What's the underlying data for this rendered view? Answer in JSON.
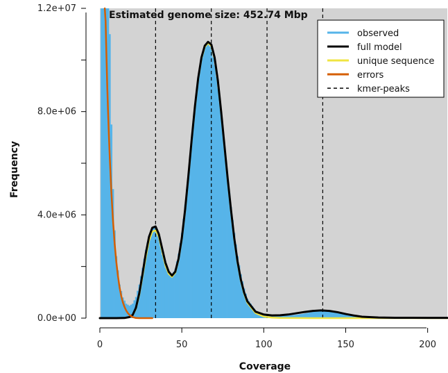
{
  "chart_data": {
    "type": "area",
    "title": "Estimated genome size: 452.74 Mbp",
    "xlabel": "Coverage",
    "ylabel": "Frequency",
    "xlim": [
      0,
      212
    ],
    "ylim": [
      0,
      12000000
    ],
    "xticks": [
      0,
      50,
      100,
      150,
      200
    ],
    "xtick_labels": [
      "0",
      "50",
      "100",
      "150",
      "200"
    ],
    "yticks": [
      0,
      2000000,
      4000000,
      6000000,
      8000000,
      10000000,
      12000000
    ],
    "ytick_labels": [
      "0.0e+00",
      "",
      "4.0e+06",
      "",
      "8.0e+06",
      "",
      "1.2e+07"
    ],
    "kmer_peaks": [
      34,
      68,
      102,
      136
    ],
    "legend_position": "top-right",
    "background": "#d3d3d3",
    "colors": {
      "observed": "#56b4e9",
      "full_model": "#000000",
      "unique_sequence": "#f0e442",
      "errors": "#d55e00",
      "kmer_peaks": "#000000"
    },
    "series": [
      {
        "name": "observed",
        "x": [
          1,
          2,
          3,
          4,
          5,
          6,
          7,
          8,
          9,
          10,
          12,
          14,
          16,
          18,
          20,
          22,
          24,
          26,
          28,
          30,
          32,
          34,
          36,
          38,
          40,
          42,
          44,
          46,
          48,
          50,
          52,
          54,
          56,
          58,
          60,
          62,
          64,
          66,
          68,
          70,
          72,
          74,
          76,
          78,
          80,
          82,
          84,
          86,
          88,
          90,
          95,
          100,
          105,
          110,
          115,
          120,
          125,
          130,
          135,
          140,
          145,
          150,
          155,
          160,
          170,
          180,
          190,
          200,
          212
        ],
        "y": [
          12000000,
          12000000,
          12000000,
          12000000,
          12000000,
          11000000,
          7500000,
          5000000,
          3400000,
          2400000,
          1300000,
          800000,
          560000,
          480000,
          560000,
          820000,
          1300000,
          1950000,
          2650000,
          3200000,
          3520000,
          3500000,
          3100000,
          2450000,
          1950000,
          1720000,
          1680000,
          1900000,
          2500000,
          3300000,
          4400000,
          5600000,
          6900000,
          8200000,
          9300000,
          10100000,
          10550000,
          10650000,
          10400000,
          9800000,
          8900000,
          7800000,
          6600000,
          5400000,
          4300000,
          3300000,
          2400000,
          1700000,
          1150000,
          750000,
          280000,
          140000,
          100000,
          95000,
          100000,
          130000,
          180000,
          240000,
          275000,
          260000,
          210000,
          140000,
          85000,
          45000,
          25000,
          18000,
          14000,
          12000,
          10000
        ]
      },
      {
        "name": "full model",
        "x": [
          0,
          5,
          10,
          15,
          18,
          20,
          22,
          24,
          26,
          28,
          30,
          32,
          34,
          36,
          38,
          40,
          42,
          44,
          46,
          48,
          50,
          52,
          54,
          56,
          58,
          60,
          62,
          64,
          66,
          68,
          70,
          72,
          74,
          76,
          78,
          80,
          82,
          84,
          86,
          88,
          90,
          95,
          100,
          105,
          110,
          115,
          120,
          125,
          130,
          135,
          140,
          145,
          150,
          155,
          160,
          170,
          180,
          190,
          200,
          212
        ],
        "y": [
          0,
          0,
          0,
          5000,
          40000,
          120000,
          400000,
          950000,
          1700000,
          2500000,
          3150000,
          3500000,
          3550000,
          3250000,
          2700000,
          2150000,
          1800000,
          1650000,
          1800000,
          2300000,
          3100000,
          4200000,
          5500000,
          6900000,
          8200000,
          9300000,
          10100000,
          10550000,
          10700000,
          10600000,
          10100000,
          9200000,
          8000000,
          6700000,
          5400000,
          4200000,
          3100000,
          2200000,
          1500000,
          1000000,
          650000,
          250000,
          140000,
          105000,
          110000,
          140000,
          190000,
          240000,
          280000,
          300000,
          280000,
          230000,
          160000,
          100000,
          55000,
          25000,
          15000,
          12000,
          10000,
          10000
        ]
      },
      {
        "name": "unique sequence",
        "x": [
          0,
          15,
          18,
          20,
          22,
          24,
          26,
          28,
          30,
          32,
          34,
          36,
          38,
          40,
          42,
          44,
          46,
          48,
          50,
          52,
          54,
          56,
          58,
          60,
          62,
          64,
          66,
          68,
          70,
          72,
          74,
          76,
          78,
          80,
          82,
          84,
          86,
          88,
          90,
          95,
          100,
          105,
          110,
          120,
          130,
          140,
          150,
          160,
          180,
          212
        ],
        "y": [
          0,
          5000,
          40000,
          110000,
          360000,
          880000,
          1600000,
          2350000,
          3000000,
          3350000,
          3400000,
          3150000,
          2600000,
          2050000,
          1720000,
          1600000,
          1760000,
          2250000,
          3050000,
          4150000,
          5450000,
          6850000,
          8150000,
          9250000,
          10050000,
          10500000,
          10650000,
          10550000,
          10050000,
          9150000,
          7950000,
          6650000,
          5350000,
          4150000,
          3050000,
          2150000,
          1450000,
          950000,
          600000,
          200000,
          60000,
          20000,
          8000,
          3000,
          1000,
          0,
          0,
          0,
          0,
          0
        ]
      },
      {
        "name": "errors",
        "x": [
          3,
          3.5,
          4,
          4.5,
          5,
          5.5,
          6,
          7,
          8,
          9,
          10,
          11,
          12,
          13,
          14,
          15,
          16,
          17,
          18,
          19,
          20,
          22,
          24,
          26,
          28,
          30,
          32
        ],
        "y": [
          12000000,
          11500000,
          10200000,
          9000000,
          8000000,
          7100000,
          6300000,
          4900000,
          3800000,
          2900000,
          2200000,
          1650000,
          1200000,
          870000,
          620000,
          440000,
          300000,
          200000,
          130000,
          80000,
          40000,
          5000,
          0,
          0,
          0,
          0,
          0
        ]
      },
      {
        "name": "kmer-peaks"
      }
    ]
  }
}
